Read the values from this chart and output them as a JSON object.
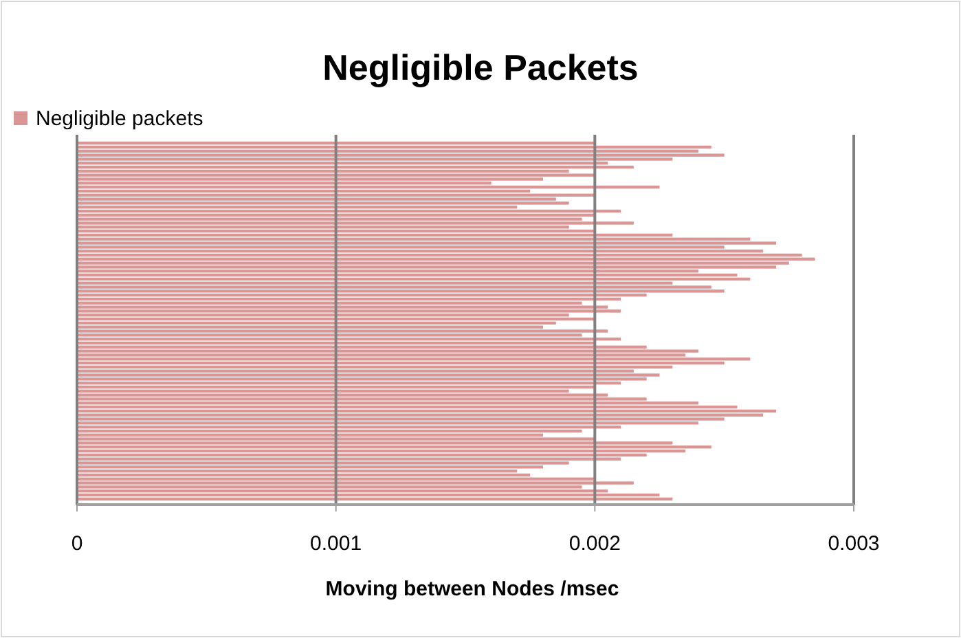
{
  "chart_data": {
    "type": "bar",
    "orientation": "horizontal",
    "title": "Negligible Packets",
    "xlabel": "Moving between Nodes /msec",
    "categories": [
      null,
      null,
      null,
      null,
      null,
      null,
      null,
      null,
      null,
      null,
      null,
      null,
      null,
      null,
      null,
      null,
      null,
      null,
      null,
      null,
      null,
      null,
      null,
      null,
      null,
      null,
      null,
      null,
      null,
      null,
      null,
      null,
      null,
      null,
      null,
      null,
      null,
      null,
      null,
      null,
      null,
      null,
      null,
      null,
      null,
      null,
      null,
      null,
      null,
      null,
      null,
      null,
      null,
      null,
      null,
      null,
      null,
      null,
      null,
      null,
      null,
      null,
      null,
      null,
      null,
      null,
      null,
      null,
      null,
      null,
      null,
      null,
      null,
      null,
      null,
      null,
      null,
      null,
      null,
      null,
      null,
      null,
      null,
      null,
      null,
      null,
      null,
      null,
      null,
      null
    ],
    "series": [
      {
        "name": "Negligible packets",
        "color": "#d99694",
        "values": [
          0.002,
          0.00245,
          0.0024,
          0.0025,
          0.0023,
          0.00205,
          0.00215,
          0.0019,
          0.002,
          0.0018,
          0.0016,
          0.00225,
          0.00175,
          0.002,
          0.00185,
          0.0019,
          0.0017,
          0.0021,
          0.002,
          0.00195,
          0.00215,
          0.0019,
          0.002,
          0.0023,
          0.0026,
          0.0027,
          0.0025,
          0.00265,
          0.0028,
          0.00285,
          0.00275,
          0.0027,
          0.0024,
          0.00255,
          0.0026,
          0.0023,
          0.00245,
          0.0025,
          0.0022,
          0.0021,
          0.00195,
          0.00205,
          0.0021,
          0.0019,
          0.002,
          0.00185,
          0.0018,
          0.00205,
          0.00195,
          0.0021,
          0.002,
          0.0022,
          0.0024,
          0.00235,
          0.0026,
          0.0025,
          0.0023,
          0.00215,
          0.00225,
          0.0022,
          0.0021,
          0.002,
          0.0019,
          0.00205,
          0.0022,
          0.0024,
          0.00255,
          0.0027,
          0.00265,
          0.0025,
          0.0024,
          0.0021,
          0.00195,
          0.0018,
          0.002,
          0.0023,
          0.00245,
          0.00235,
          0.0022,
          0.0021,
          0.0019,
          0.0018,
          0.0017,
          0.00175,
          0.002,
          0.00215,
          0.00195,
          0.00205,
          0.00225,
          0.0023
        ]
      }
    ],
    "xlim": [
      0,
      0.003
    ],
    "xticks": [
      0,
      0.001,
      0.002,
      0.003
    ],
    "grid": "x",
    "legend": "top left"
  }
}
